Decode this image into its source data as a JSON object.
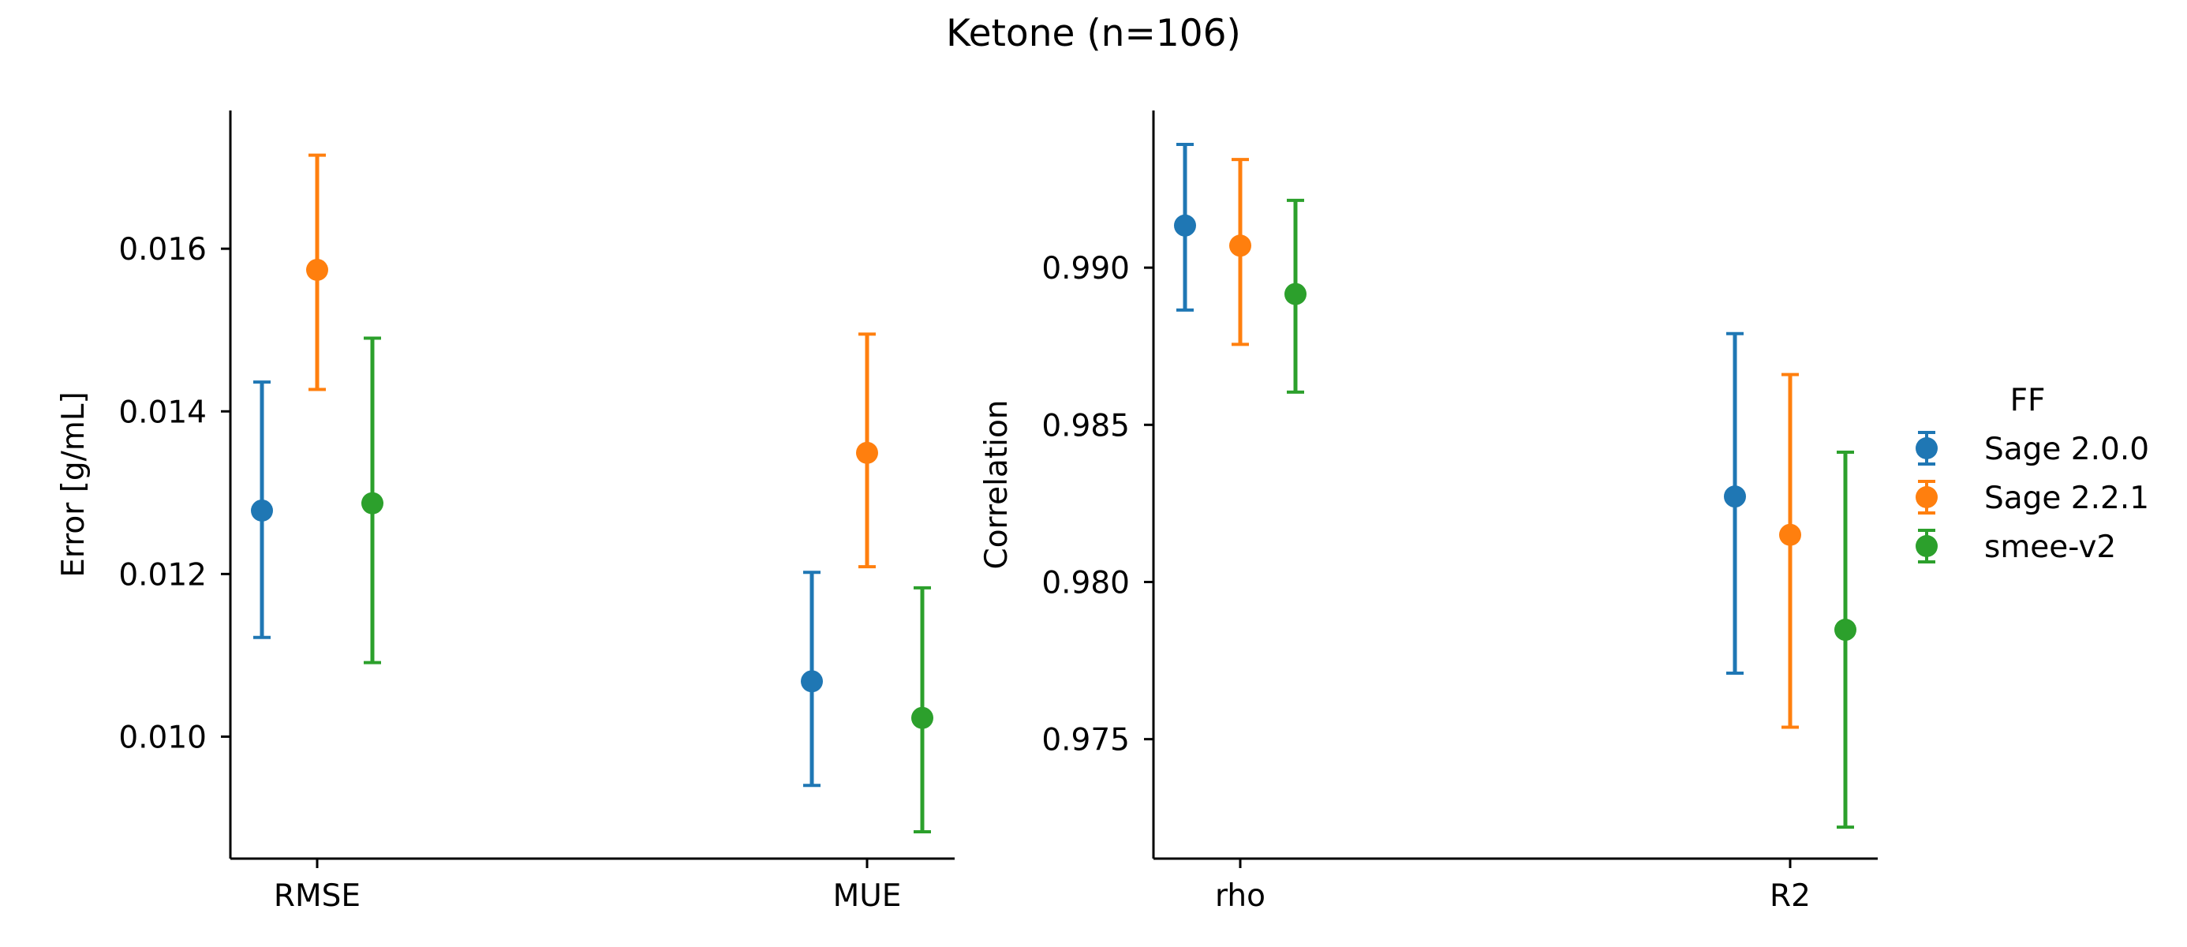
{
  "figure": {
    "title": "Ketone (n=106)"
  },
  "legend": {
    "title": "FF",
    "entries": [
      {
        "name": "Sage 2.0.0",
        "color": "#1f77b4"
      },
      {
        "name": "Sage 2.2.1",
        "color": "#ff7f0e"
      },
      {
        "name": "smee-v2",
        "color": "#2ca02c"
      }
    ]
  },
  "chart_data": [
    {
      "type": "scatter",
      "subtype": "point-with-error-bars",
      "title": "",
      "xlabel": "",
      "ylabel": "Error [g/mL]",
      "categories": [
        "RMSE",
        "MUE"
      ],
      "ylim": [
        0.0085,
        0.0177
      ],
      "yticks": [
        0.01,
        0.012,
        0.014,
        0.016
      ],
      "ytick_labels": [
        "0.010",
        "0.012",
        "0.014",
        "0.016"
      ],
      "series": [
        {
          "name": "Sage 2.0.0",
          "values": [
            0.01278,
            0.01068
          ],
          "lower": [
            0.01122,
            0.0094
          ],
          "upper": [
            0.01436,
            0.01202
          ]
        },
        {
          "name": "Sage 2.2.1",
          "values": [
            0.01574,
            0.01349
          ],
          "lower": [
            0.01427,
            0.01209
          ],
          "upper": [
            0.01715,
            0.01495
          ]
        },
        {
          "name": "smee-v2",
          "values": [
            0.01287,
            0.01023
          ],
          "lower": [
            0.01091,
            0.00883
          ],
          "upper": [
            0.0149,
            0.01183
          ]
        }
      ],
      "grid": false
    },
    {
      "type": "scatter",
      "subtype": "point-with-error-bars",
      "title": "",
      "xlabel": "",
      "ylabel": "Correlation",
      "categories": [
        "rho",
        "R2"
      ],
      "ylim": [
        0.9712,
        0.995
      ],
      "yticks": [
        0.975,
        0.98,
        0.985,
        0.99
      ],
      "ytick_labels": [
        "0.975",
        "0.980",
        "0.985",
        "0.990"
      ],
      "series": [
        {
          "name": "Sage 2.0.0",
          "values": [
            0.99134,
            0.98272
          ],
          "lower": [
            0.98865,
            0.9771
          ],
          "upper": [
            0.99392,
            0.9879
          ]
        },
        {
          "name": "Sage 2.2.1",
          "values": [
            0.9907,
            0.9815
          ],
          "lower": [
            0.98756,
            0.97538
          ],
          "upper": [
            0.99344,
            0.9866
          ]
        },
        {
          "name": "smee-v2",
          "values": [
            0.98916,
            0.97848
          ],
          "lower": [
            0.98604,
            0.9722
          ],
          "upper": [
            0.99214,
            0.98413
          ]
        }
      ],
      "grid": false
    }
  ]
}
